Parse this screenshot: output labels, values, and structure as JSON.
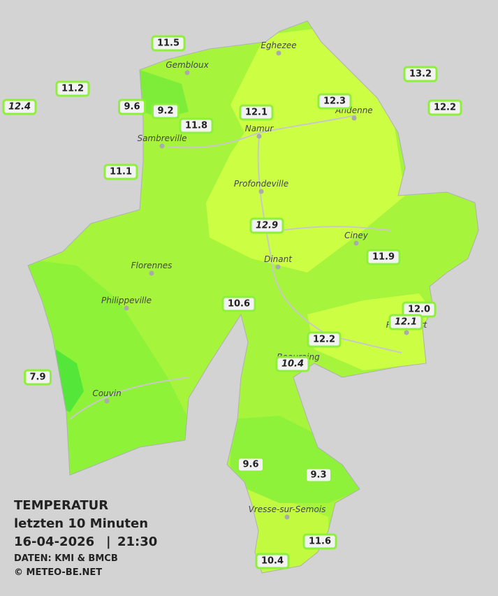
{
  "towns": [
    "Eghezee",
    "Gembloux",
    "Andenne",
    "Namur",
    "Sambreville",
    "Profondeville",
    "Ciney",
    "Dinant",
    "Florennes",
    "Philippeville",
    "Rochefort",
    "Beauraing",
    "Couvin",
    "Vresse-sur-Semois"
  ],
  "stations": [
    {
      "label": "11.5"
    },
    {
      "label": "11.2"
    },
    {
      "label": "12.4",
      "italic": true
    },
    {
      "label": "9.6"
    },
    {
      "label": "9.2"
    },
    {
      "label": "11.8"
    },
    {
      "label": "11.1"
    },
    {
      "label": "12.1"
    },
    {
      "label": "12.3"
    },
    {
      "label": "13.2"
    },
    {
      "label": "12.2"
    },
    {
      "label": "12.9",
      "italic": true
    },
    {
      "label": "11.9"
    },
    {
      "label": "10.6"
    },
    {
      "label": "12.0"
    },
    {
      "label": "12.1",
      "italic": true
    },
    {
      "label": "12.2"
    },
    {
      "label": "10.4",
      "italic": true
    },
    {
      "label": "7.9"
    },
    {
      "label": "9.6"
    },
    {
      "label": "9.3"
    },
    {
      "label": "11.6"
    },
    {
      "label": "10.4"
    }
  ],
  "legend": {
    "title": "TEMPERATUR",
    "period": "letzten 10 Minuten",
    "date": "16-04-2026",
    "separator": "|",
    "time": "21:30",
    "source": "DATEN: KMI & BMCB",
    "copyright": "© METEO-BE.NET"
  }
}
